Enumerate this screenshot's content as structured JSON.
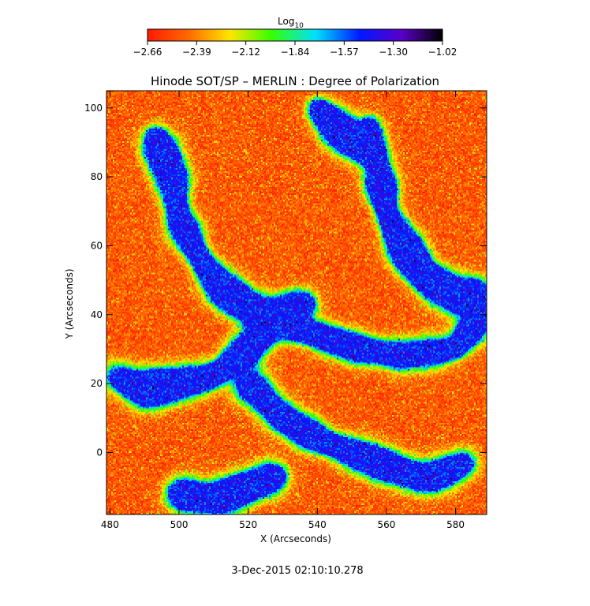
{
  "chart_data": {
    "type": "heatmap",
    "title": "Hinode SOT/SP – MERLIN : Degree of Polarization",
    "xlabel": "X (Arcseconds)",
    "ylabel": "Y (Arcseconds)",
    "xlim": [
      479,
      589
    ],
    "ylim": [
      -18,
      105
    ],
    "xticks": [
      480,
      500,
      520,
      540,
      560,
      580
    ],
    "yticks": [
      0,
      20,
      40,
      60,
      80,
      100
    ],
    "colorbar": {
      "title_main": "Log",
      "title_sub": "10",
      "range": [
        -2.66,
        -1.02
      ],
      "ticks": [
        "−2.66",
        "−2.39",
        "−2.12",
        "−1.84",
        "−1.57",
        "−1.30",
        "−1.02"
      ],
      "colors": [
        "#ff1a00",
        "#ff6a00",
        "#ffe600",
        "#36ff00",
        "#00e0ff",
        "#0018ff",
        "#5a00c8",
        "#000000"
      ]
    },
    "footer": "3-Dec-2015 02:10:10.278"
  }
}
